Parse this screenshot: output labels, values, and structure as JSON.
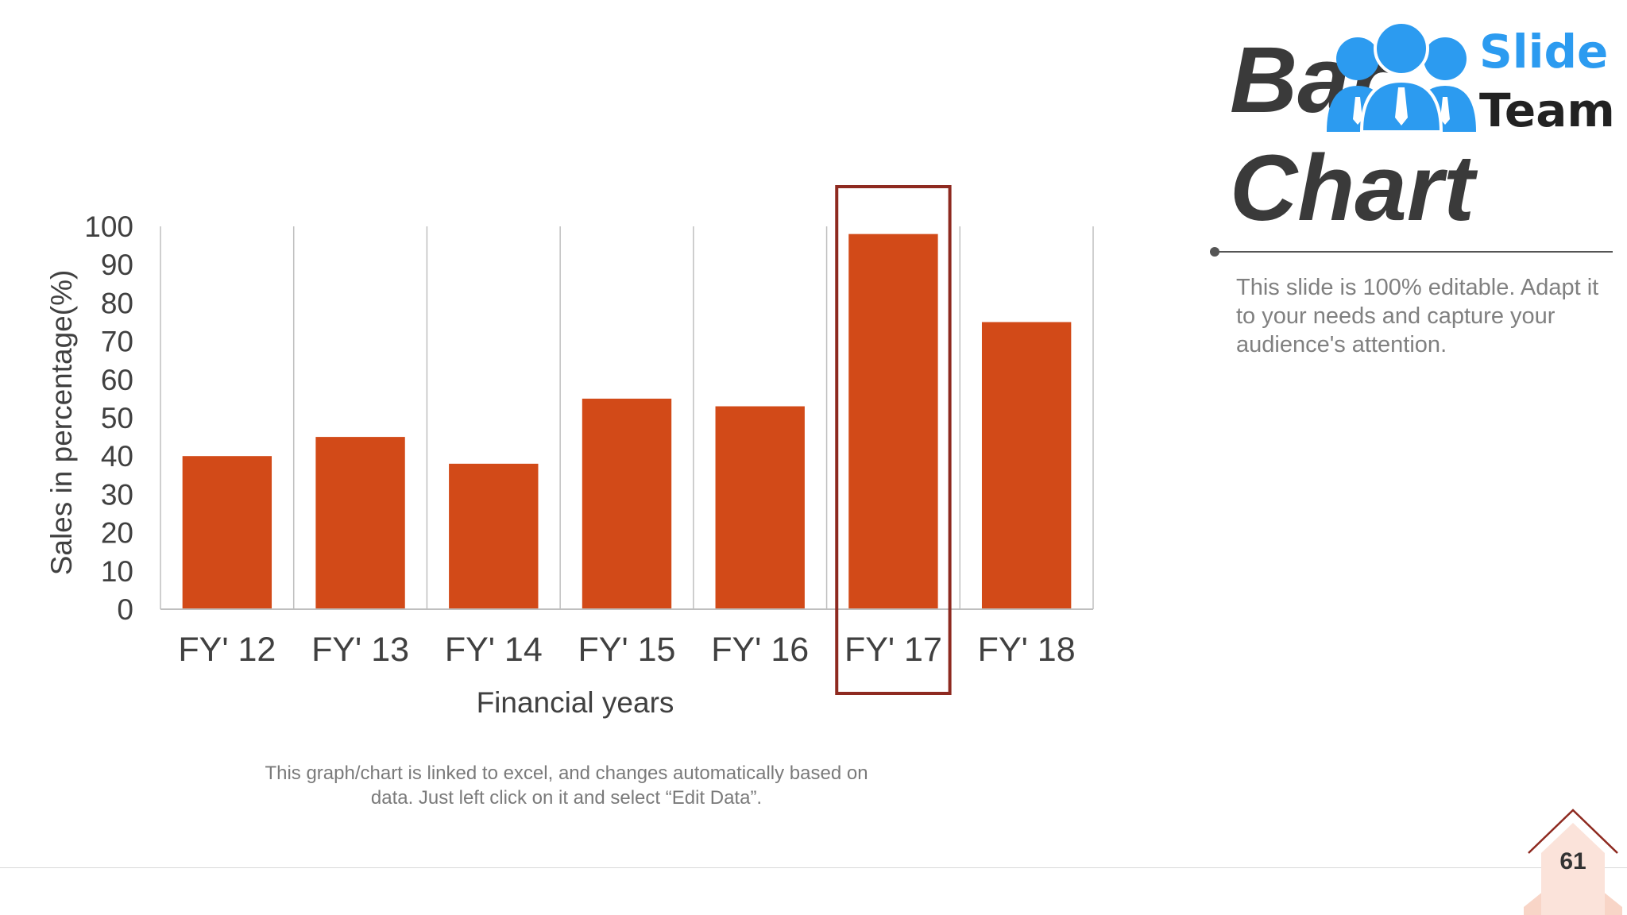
{
  "slide": {
    "title_line_1": "Bar",
    "title_line_2": "Chart",
    "description": "This slide is 100% editable. Adapt it to your needs and capture your audience's attention.",
    "note_line_1": "This graph/chart is linked to excel, and changes automatically based on",
    "note_line_2": "data. Just left click on it and select “Edit Data”.",
    "page_number": "61"
  },
  "logo": {
    "line_1": "Slide",
    "line_2": "Team",
    "icon": "people-group-icon",
    "colors": {
      "blue": "#2C9BF0",
      "dark": "#222222"
    }
  },
  "chart_data": {
    "type": "bar",
    "categories": [
      "FY' 12",
      "FY' 13",
      "FY' 14",
      "FY' 15",
      "FY' 16",
      "FY' 17",
      "FY' 18"
    ],
    "values": [
      40,
      45,
      38,
      55,
      53,
      98,
      75
    ],
    "xlabel": "Financial years",
    "ylabel": "Sales in percentage(%)",
    "ylim": [
      0,
      100
    ],
    "yticks": [
      0,
      10,
      20,
      30,
      40,
      50,
      60,
      70,
      80,
      90,
      100
    ],
    "highlight_category": "FY' 17",
    "grid": "vertical separators",
    "colors": {
      "bar": "#D24A18",
      "highlight_box": "#8E2A20",
      "axis": "#BFBFBF"
    }
  }
}
